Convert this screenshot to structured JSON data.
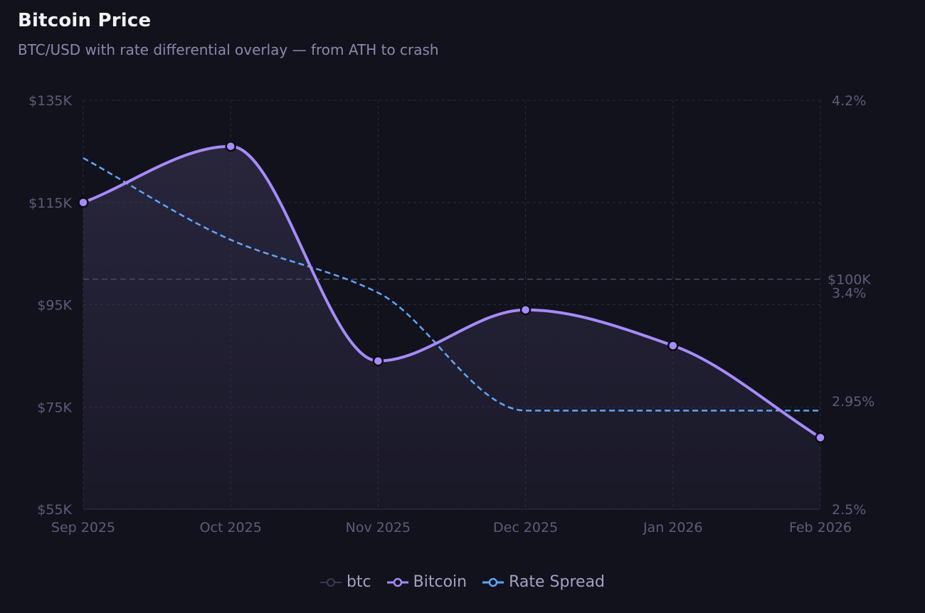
{
  "title": "Bitcoin Price",
  "subtitle": "BTC/USD with rate differential overlay — from ATH to crash",
  "colors": {
    "background": "#12121d",
    "grid": "#2b2b3d",
    "bitcoin": "#a78bfa",
    "rate_spread": "#60a5fa",
    "btc_area": "#3b3656",
    "tick_text": "#5d5c78",
    "reference_line": "#4a4a5e"
  },
  "chart_data": {
    "type": "line",
    "categories": [
      "Sep 2025",
      "Oct 2025",
      "Nov 2025",
      "Dec 2025",
      "Jan 2026",
      "Feb 2026"
    ],
    "series": [
      {
        "name": "btc",
        "type": "area",
        "axis": "left",
        "values": [
          115000,
          126000,
          84000,
          94000,
          87000,
          69000
        ]
      },
      {
        "name": "Bitcoin",
        "type": "line",
        "axis": "left",
        "values": [
          115000,
          126000,
          84000,
          94000,
          87000,
          69000
        ]
      },
      {
        "name": "Rate Spread",
        "type": "line",
        "axis": "right",
        "style": "dashed",
        "values": [
          3.96,
          3.62,
          3.4,
          2.91,
          2.91,
          2.91
        ]
      }
    ],
    "left_axis": {
      "min": 55000,
      "max": 135000,
      "ticks": [
        55000,
        75000,
        95000,
        115000,
        135000
      ],
      "tick_labels": [
        "$55K",
        "$75K",
        "$95K",
        "$115K",
        "$135K"
      ]
    },
    "right_axis": {
      "min": 2.5,
      "max": 4.2,
      "ticks": [
        2.5,
        2.95,
        3.4,
        4.2
      ],
      "tick_labels": [
        "2.5%",
        "2.95%",
        "3.4%",
        "4.2%"
      ]
    },
    "reference_line": {
      "value": 100000,
      "label": "$100K",
      "axis": "left"
    },
    "legend": [
      "btc",
      "Bitcoin",
      "Rate Spread"
    ],
    "legend_position": "bottom-center"
  }
}
